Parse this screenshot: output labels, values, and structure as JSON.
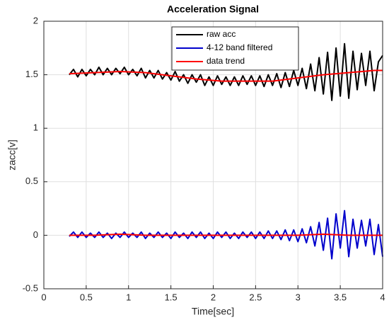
{
  "chart_data": {
    "type": "line",
    "title": "Acceleration Signal",
    "x_label": "Time[sec]",
    "y_label": "zacc[v]",
    "x": [
      0.3,
      0.35,
      0.4,
      0.45,
      0.5,
      0.55,
      0.6,
      0.65,
      0.7,
      0.75,
      0.8,
      0.85,
      0.9,
      0.95,
      1.0,
      1.05,
      1.1,
      1.15,
      1.2,
      1.25,
      1.3,
      1.35,
      1.4,
      1.45,
      1.5,
      1.55,
      1.6,
      1.65,
      1.7,
      1.75,
      1.8,
      1.85,
      1.9,
      1.95,
      2.0,
      2.05,
      2.1,
      2.15,
      2.2,
      2.25,
      2.3,
      2.35,
      2.4,
      2.45,
      2.5,
      2.55,
      2.6,
      2.65,
      2.7,
      2.75,
      2.8,
      2.85,
      2.9,
      2.95,
      3.0,
      3.05,
      3.1,
      3.15,
      3.2,
      3.25,
      3.3,
      3.35,
      3.4,
      3.45,
      3.5,
      3.55,
      3.6,
      3.65,
      3.7,
      3.75,
      3.8,
      3.85,
      3.9,
      3.95,
      4.0
    ],
    "series": [
      {
        "name": "raw acc",
        "color": "#000000",
        "values": [
          1.5,
          1.55,
          1.48,
          1.55,
          1.49,
          1.55,
          1.5,
          1.57,
          1.5,
          1.56,
          1.5,
          1.56,
          1.51,
          1.57,
          1.5,
          1.55,
          1.49,
          1.56,
          1.47,
          1.54,
          1.47,
          1.54,
          1.46,
          1.52,
          1.45,
          1.53,
          1.44,
          1.5,
          1.42,
          1.5,
          1.43,
          1.5,
          1.4,
          1.48,
          1.4,
          1.49,
          1.41,
          1.48,
          1.4,
          1.48,
          1.4,
          1.49,
          1.41,
          1.49,
          1.4,
          1.49,
          1.39,
          1.5,
          1.4,
          1.51,
          1.38,
          1.52,
          1.39,
          1.54,
          1.4,
          1.56,
          1.37,
          1.6,
          1.35,
          1.66,
          1.32,
          1.71,
          1.26,
          1.75,
          1.3,
          1.79,
          1.28,
          1.72,
          1.36,
          1.7,
          1.4,
          1.72,
          1.35,
          1.62,
          1.68
        ]
      },
      {
        "name": "4-12 band filtered",
        "color": "#0000cc",
        "values": [
          -0.01,
          0.03,
          -0.02,
          0.03,
          -0.02,
          0.02,
          -0.02,
          0.03,
          -0.02,
          0.02,
          -0.03,
          0.02,
          -0.02,
          0.03,
          -0.02,
          0.02,
          -0.02,
          0.03,
          -0.03,
          0.02,
          -0.02,
          0.03,
          -0.02,
          0.02,
          -0.03,
          0.03,
          -0.02,
          0.02,
          -0.03,
          0.03,
          -0.02,
          0.03,
          -0.03,
          0.02,
          -0.03,
          0.03,
          -0.02,
          0.03,
          -0.03,
          0.02,
          -0.03,
          0.03,
          -0.02,
          0.03,
          -0.03,
          0.03,
          -0.03,
          0.04,
          -0.03,
          0.04,
          -0.04,
          0.05,
          -0.05,
          0.05,
          -0.06,
          0.06,
          -0.07,
          0.08,
          -0.1,
          0.12,
          -0.14,
          0.16,
          -0.22,
          0.2,
          -0.12,
          0.23,
          -0.2,
          0.15,
          -0.12,
          0.14,
          -0.1,
          0.15,
          -0.18,
          0.1,
          -0.2
        ]
      },
      {
        "name": "data trend",
        "color": "#ff0000",
        "x": [
          0.3,
          0.6,
          0.9,
          1.2,
          1.5,
          1.8,
          2.1,
          2.4,
          2.7,
          3.0,
          3.3,
          3.6,
          3.9,
          4.0
        ],
        "values": [
          1.51,
          1.52,
          1.53,
          1.52,
          1.49,
          1.46,
          1.44,
          1.44,
          1.44,
          1.47,
          1.5,
          1.52,
          1.54,
          1.54
        ]
      },
      {
        "color": "#ff0000",
        "x": [
          0.3,
          0.6,
          0.9,
          1.2,
          1.5,
          1.8,
          2.1,
          2.4,
          2.7,
          3.0,
          3.3,
          3.6,
          3.9,
          4.0
        ],
        "values": [
          0,
          0,
          0.01,
          0,
          0,
          0,
          0,
          0,
          0,
          0,
          0.01,
          0,
          0,
          0
        ]
      }
    ],
    "xlim": [
      0,
      4
    ],
    "xticks": [
      0,
      0.5,
      1,
      1.5,
      2,
      2.5,
      3,
      3.5,
      4
    ],
    "ylim": [
      -0.5,
      2
    ],
    "yticks": [
      -0.5,
      0,
      0.5,
      1,
      1.5,
      2
    ],
    "grid": true,
    "legend": "north"
  }
}
